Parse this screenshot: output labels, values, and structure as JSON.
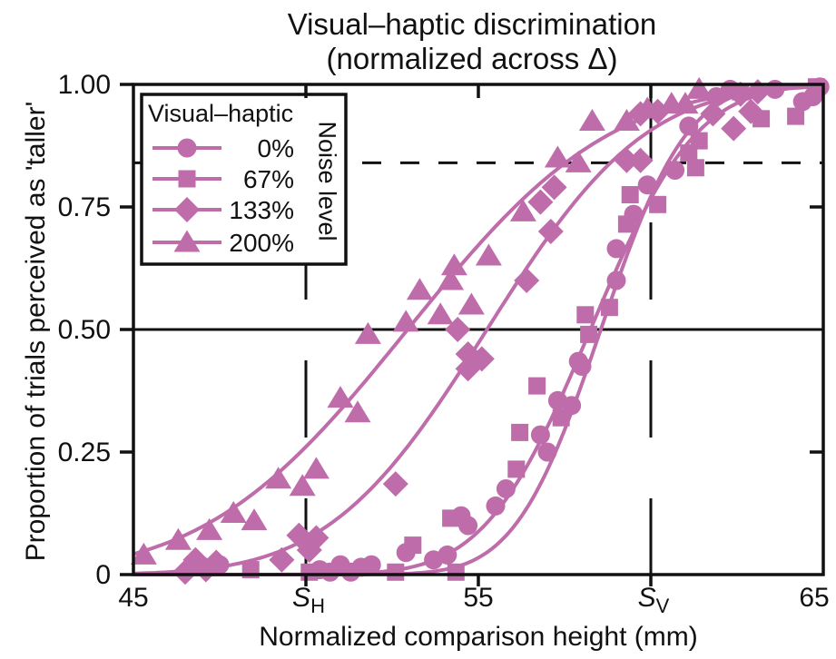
{
  "figure": {
    "title_line1": "Visual–haptic discrimination",
    "title_line2": "(normalized across Δ)",
    "accent_color": "#bf6cab",
    "axis_color": "#111111"
  },
  "chart_data": {
    "type": "scatter",
    "subtype": "psychometric-functions-with-fitted-cumulative-gaussian-curves",
    "title": "Visual–haptic discrimination (normalized across Δ)",
    "xlabel": "Normalized comparison height (mm)",
    "ylabel": "Proportion of trials perceived as 'taller'",
    "xlim": [
      45,
      65
    ],
    "ylim": [
      0,
      1
    ],
    "grid": false,
    "x_axis": {
      "ticks": [
        {
          "value": 45,
          "label": "45"
        },
        {
          "value": 50,
          "main": "S",
          "sub": "H"
        },
        {
          "value": 55,
          "label": "55"
        },
        {
          "value": 60,
          "main": "S",
          "sub": "V"
        },
        {
          "value": 65,
          "label": "65"
        }
      ]
    },
    "y_axis": {
      "ticks": [
        {
          "value": 0,
          "label": "0"
        },
        {
          "value": 0.25,
          "label": "0.25"
        },
        {
          "value": 0.5,
          "label": "0.50"
        },
        {
          "value": 0.75,
          "label": "0.75"
        },
        {
          "value": 1.0,
          "label": "1.00"
        }
      ]
    },
    "reference_lines": {
      "horizontal_solid_at": 0.5,
      "horizontal_dashed_at": 0.84,
      "vertical_dashed_at": [
        50,
        60
      ],
      "vertical_dashed_labels": [
        "S_H",
        "S_V"
      ]
    },
    "legend": {
      "title": "Visual–haptic",
      "side_label": "Noise level",
      "position": "upper-left",
      "entries": [
        {
          "label": "0%",
          "marker": "circle"
        },
        {
          "label": "67%",
          "marker": "square"
        },
        {
          "label": "133%",
          "marker": "diamond"
        },
        {
          "label": "200%",
          "marker": "triangle"
        }
      ]
    },
    "series": [
      {
        "name": "0%",
        "marker": "circle",
        "color": "#bf6cab",
        "curve_fit": {
          "type": "cumulative-gaussian",
          "mean": 58.55,
          "sd": 1.95
        },
        "points": [
          [
            47.5,
            0.02
          ],
          [
            50.4,
            0.01
          ],
          [
            50.7,
            0.005
          ],
          [
            51.0,
            0.02
          ],
          [
            51.3,
            0.005
          ],
          [
            51.6,
            0.015
          ],
          [
            51.9,
            0.02
          ],
          [
            52.9,
            0.045
          ],
          [
            53.7,
            0.03
          ],
          [
            54.1,
            0.04
          ],
          [
            54.5,
            0.12
          ],
          [
            54.7,
            0.1
          ],
          [
            55.5,
            0.14
          ],
          [
            55.8,
            0.175
          ],
          [
            56.8,
            0.285
          ],
          [
            57.0,
            0.25
          ],
          [
            57.3,
            0.355
          ],
          [
            57.7,
            0.345
          ],
          [
            57.9,
            0.435
          ],
          [
            58.0,
            0.425
          ],
          [
            59.0,
            0.6
          ],
          [
            59.0,
            0.665
          ],
          [
            59.5,
            0.735
          ],
          [
            59.9,
            0.795
          ],
          [
            60.7,
            0.825
          ],
          [
            61.1,
            0.915
          ],
          [
            61.9,
            0.975
          ],
          [
            62.3,
            0.99
          ],
          [
            63.6,
            0.99
          ],
          [
            64.4,
            0.965
          ],
          [
            64.7,
            0.975
          ],
          [
            64.9,
            0.995
          ]
        ]
      },
      {
        "name": "67%",
        "marker": "square",
        "color": "#bf6cab",
        "curve_fit": {
          "type": "cumulative-gaussian",
          "mean": 58.25,
          "sd": 2.4
        },
        "points": [
          [
            48.4,
            0.01
          ],
          [
            50.1,
            0.005
          ],
          [
            52.6,
            0.005
          ],
          [
            53.1,
            0.06
          ],
          [
            54.35,
            0.005
          ],
          [
            54.2,
            0.115
          ],
          [
            56.1,
            0.215
          ],
          [
            56.2,
            0.29
          ],
          [
            56.7,
            0.385
          ],
          [
            57.4,
            0.32
          ],
          [
            58.1,
            0.53
          ],
          [
            58.2,
            0.49
          ],
          [
            58.8,
            0.545
          ],
          [
            59.3,
            0.715
          ],
          [
            59.4,
            0.775
          ],
          [
            60.2,
            0.755
          ],
          [
            61.1,
            0.86
          ],
          [
            61.3,
            0.83
          ],
          [
            61.4,
            0.885
          ],
          [
            62.6,
            0.985
          ],
          [
            63.2,
            0.93
          ],
          [
            64.2,
            0.935
          ],
          [
            64.8,
            0.995
          ]
        ]
      },
      {
        "name": "133%",
        "marker": "diamond",
        "color": "#bf6cab",
        "curve_fit": {
          "type": "cumulative-gaussian",
          "mean": 55.25,
          "sd": 3.6
        },
        "points": [
          [
            46.5,
            0.005
          ],
          [
            46.8,
            0.03
          ],
          [
            47.1,
            0.01
          ],
          [
            47.4,
            0.025
          ],
          [
            49.3,
            0.03
          ],
          [
            49.8,
            0.08
          ],
          [
            50.1,
            0.05
          ],
          [
            50.3,
            0.075
          ],
          [
            52.6,
            0.185
          ],
          [
            54.4,
            0.5
          ],
          [
            54.7,
            0.45
          ],
          [
            54.7,
            0.42
          ],
          [
            55.1,
            0.44
          ],
          [
            56.4,
            0.6
          ],
          [
            56.8,
            0.76
          ],
          [
            57.1,
            0.7
          ],
          [
            57.2,
            0.79
          ],
          [
            59.3,
            0.845
          ],
          [
            59.7,
            0.845
          ],
          [
            59.7,
            0.94
          ],
          [
            60.2,
            0.945
          ],
          [
            61.8,
            0.94
          ],
          [
            62.4,
            0.91
          ],
          [
            62.6,
            0.98
          ],
          [
            62.9,
            0.945
          ],
          [
            63.1,
            0.985
          ]
        ]
      },
      {
        "name": "200%",
        "marker": "triangle",
        "color": "#bf6cab",
        "curve_fit": {
          "type": "cumulative-gaussian",
          "mean": 52.95,
          "sd": 4.6
        },
        "points": [
          [
            45.3,
            0.04
          ],
          [
            46.3,
            0.07
          ],
          [
            47.2,
            0.09
          ],
          [
            47.9,
            0.125
          ],
          [
            48.5,
            0.11
          ],
          [
            49.2,
            0.195
          ],
          [
            49.9,
            0.18
          ],
          [
            50.3,
            0.215
          ],
          [
            51.0,
            0.36
          ],
          [
            51.5,
            0.33
          ],
          [
            51.8,
            0.49
          ],
          [
            52.9,
            0.515
          ],
          [
            53.3,
            0.58
          ],
          [
            53.9,
            0.53
          ],
          [
            54.2,
            0.6
          ],
          [
            54.3,
            0.63
          ],
          [
            54.8,
            0.55
          ],
          [
            55.3,
            0.65
          ],
          [
            56.3,
            0.74
          ],
          [
            57.3,
            0.85
          ],
          [
            57.9,
            0.84
          ],
          [
            58.3,
            0.925
          ],
          [
            59.3,
            0.925
          ],
          [
            59.9,
            0.95
          ],
          [
            60.6,
            0.96
          ],
          [
            61.0,
            0.96
          ],
          [
            61.4,
            0.99
          ]
        ]
      }
    ]
  }
}
